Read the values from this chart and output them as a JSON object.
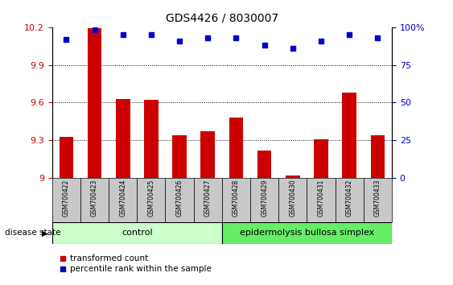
{
  "title": "GDS4426 / 8030007",
  "samples": [
    "GSM700422",
    "GSM700423",
    "GSM700424",
    "GSM700425",
    "GSM700426",
    "GSM700427",
    "GSM700428",
    "GSM700429",
    "GSM700430",
    "GSM700431",
    "GSM700432",
    "GSM700433"
  ],
  "bar_values": [
    9.33,
    10.19,
    9.63,
    9.62,
    9.34,
    9.37,
    9.48,
    9.22,
    9.02,
    9.31,
    9.68,
    9.34
  ],
  "percentile_values": [
    92,
    98,
    95,
    95,
    91,
    93,
    93,
    88,
    86,
    91,
    95,
    93
  ],
  "ylim_left": [
    9.0,
    10.2
  ],
  "ylim_right": [
    0,
    100
  ],
  "yticks_left": [
    9.0,
    9.3,
    9.6,
    9.9,
    10.2
  ],
  "yticks_right": [
    0,
    25,
    50,
    75,
    100
  ],
  "ytick_labels_left": [
    "9",
    "9.3",
    "9.6",
    "9.9",
    "10.2"
  ],
  "ytick_labels_right": [
    "0",
    "25",
    "50",
    "75",
    "100%"
  ],
  "bar_color": "#cc0000",
  "dot_color": "#0000cc",
  "control_label": "control",
  "disease_label": "epidermolysis bullosa simplex",
  "control_count": 6,
  "disease_count": 6,
  "control_bg": "#ccffcc",
  "disease_bg": "#66ee66",
  "disease_state_label": "disease state",
  "legend_bar": "transformed count",
  "legend_dot": "percentile rank within the sample",
  "tick_bg": "#c8c8c8",
  "title_fontsize": 10,
  "axis_fontsize": 8,
  "label_fontsize": 8
}
